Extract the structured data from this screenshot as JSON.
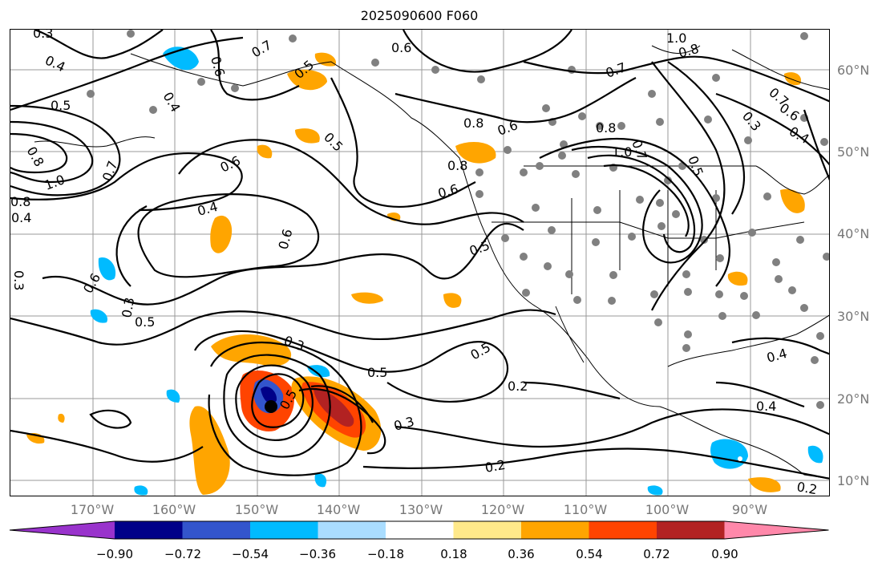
{
  "title": "2025090600 F060",
  "lat_labels": [
    "60°N",
    "50°N",
    "40°N",
    "30°N",
    "20°N",
    "10°N"
  ],
  "lon_labels": [
    "170°W",
    "160°W",
    "150°W",
    "140°W",
    "130°W",
    "120°W",
    "110°W",
    "100°W",
    "90°W"
  ],
  "contour_labels": [
    "0.3",
    "0.4",
    "0.5",
    "0.6",
    "0.4",
    "0.7",
    "0.5",
    "0.7",
    "1.0",
    "0.8",
    "0.8",
    "0.6",
    "0.5",
    "0.6",
    "0.3",
    "0.4",
    "0.6",
    "0.3",
    "0.6",
    "0.4",
    "0.7",
    "0.8",
    "0.7",
    "1.0",
    "0.6",
    "0.8",
    "1.0",
    "0.8",
    "0.7",
    "0.6",
    "0.3",
    "0.4",
    "0.5",
    "0.5",
    "0.6",
    "0.5",
    "0.4",
    "0.3",
    "0.5",
    "0.5",
    "0.3",
    "0.2",
    "0.4",
    "0.2",
    "0.2",
    "0.8",
    "0.5"
  ],
  "colorbar": {
    "ticks": [
      "−0.90",
      "−0.72",
      "−0.54",
      "−0.36",
      "−0.18",
      "0.18",
      "0.36",
      "0.54",
      "0.72",
      "0.90"
    ],
    "colors": [
      "#9933cc",
      "#000088",
      "#3355cc",
      "#00bbff",
      "#aaddff",
      "#ffffff",
      "#ffe98a",
      "#ffa500",
      "#ff4400",
      "#b22222",
      "#ff88aa"
    ]
  }
}
